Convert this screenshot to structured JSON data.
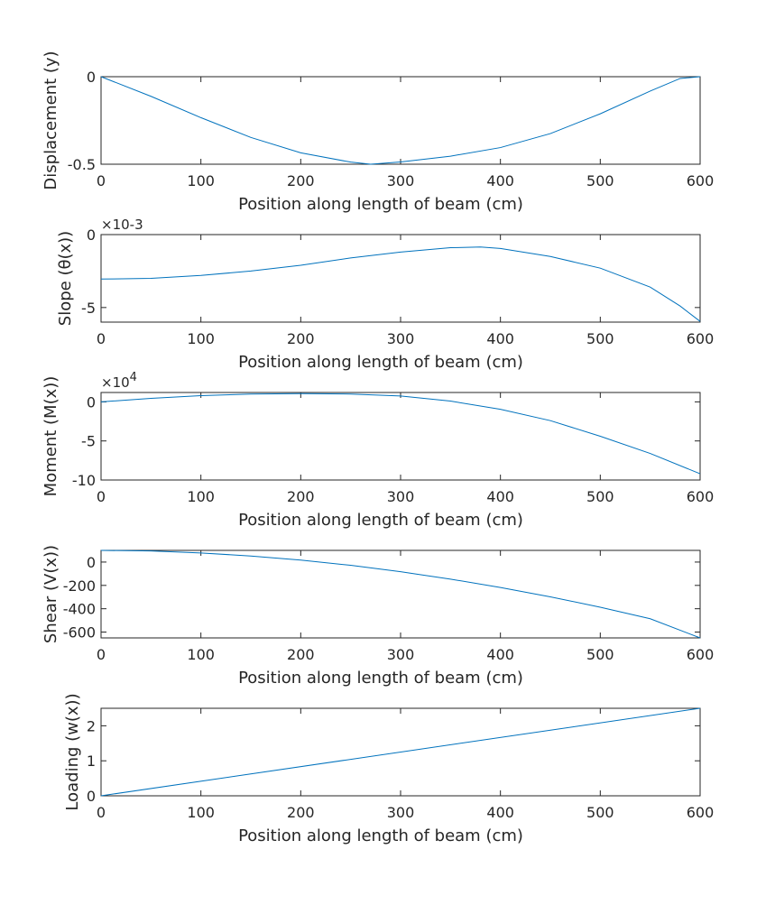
{
  "line_color": "#0072bd",
  "chart_data": [
    {
      "type": "line",
      "xlabel": "Position along length of beam (cm)",
      "ylabel": "Displacement (y)",
      "exponent_label": "",
      "xlim": [
        0,
        600
      ],
      "ylim": [
        -0.5,
        0
      ],
      "xticks": [
        0,
        100,
        200,
        300,
        400,
        500,
        600
      ],
      "xtick_labels": [
        "0",
        "100",
        "200",
        "300",
        "400",
        "500",
        "600"
      ],
      "yticks": [
        -0.5,
        0
      ],
      "ytick_labels": [
        "-0.5",
        "0"
      ],
      "x": [
        0,
        50,
        100,
        150,
        200,
        250,
        270,
        300,
        350,
        400,
        450,
        500,
        550,
        580,
        600
      ],
      "y": [
        0,
        -0.112,
        -0.234,
        -0.347,
        -0.435,
        -0.488,
        -0.5,
        -0.487,
        -0.454,
        -0.405,
        -0.325,
        -0.212,
        -0.082,
        -0.01,
        0
      ]
    },
    {
      "type": "line",
      "xlabel": "Position along length of beam (cm)",
      "ylabel": "Slope (θ(x))",
      "exponent_label": "×10-3",
      "xlim": [
        0,
        600
      ],
      "ylim": [
        -6,
        0
      ],
      "xticks": [
        0,
        100,
        200,
        300,
        400,
        500,
        600
      ],
      "xtick_labels": [
        "0",
        "100",
        "200",
        "300",
        "400",
        "500",
        "600"
      ],
      "yticks": [
        -5,
        0
      ],
      "ytick_labels": [
        "-5",
        "0"
      ],
      "x": [
        0,
        50,
        100,
        150,
        200,
        250,
        300,
        350,
        380,
        400,
        450,
        500,
        550,
        580,
        600
      ],
      "y": [
        -3.05,
        -3.0,
        -2.8,
        -2.5,
        -2.1,
        -1.6,
        -1.2,
        -0.9,
        -0.85,
        -0.95,
        -1.5,
        -2.3,
        -3.6,
        -4.9,
        -5.95
      ]
    },
    {
      "type": "line",
      "xlabel": "Position along length of beam (cm)",
      "ylabel": "Moment (M(x))",
      "exponent_label": "×10",
      "exponent_power": "4",
      "xlim": [
        0,
        600
      ],
      "ylim": [
        -10,
        1.2
      ],
      "xticks": [
        0,
        100,
        200,
        300,
        400,
        500,
        600
      ],
      "xtick_labels": [
        "0",
        "100",
        "200",
        "300",
        "400",
        "500",
        "600"
      ],
      "yticks": [
        -10,
        -5,
        0
      ],
      "ytick_labels": [
        "-10",
        "-5",
        "0"
      ],
      "x": [
        0,
        50,
        100,
        150,
        200,
        250,
        300,
        350,
        400,
        450,
        500,
        550,
        600
      ],
      "y": [
        0,
        0.45,
        0.8,
        1.0,
        1.05,
        1.0,
        0.75,
        0.1,
        -0.95,
        -2.4,
        -4.4,
        -6.6,
        -9.2
      ]
    },
    {
      "type": "line",
      "xlabel": "Position along length of beam (cm)",
      "ylabel": "Shear (V(x))",
      "exponent_label": "",
      "xlim": [
        0,
        600
      ],
      "ylim": [
        -650,
        100
      ],
      "xticks": [
        0,
        100,
        200,
        300,
        400,
        500,
        600
      ],
      "xtick_labels": [
        "0",
        "100",
        "200",
        "300",
        "400",
        "500",
        "600"
      ],
      "yticks": [
        -600,
        -400,
        -200,
        0
      ],
      "ytick_labels": [
        "-600",
        "-400",
        "-200",
        "0"
      ],
      "x": [
        0,
        50,
        100,
        150,
        200,
        250,
        300,
        350,
        400,
        450,
        500,
        550,
        600
      ],
      "y": [
        100,
        95,
        78,
        52,
        17,
        -28,
        -83,
        -146,
        -218,
        -298,
        -387,
        -486,
        -650
      ]
    },
    {
      "type": "line",
      "xlabel": "Position along length of beam (cm)",
      "ylabel": "Loading (w(x))",
      "exponent_label": "",
      "xlim": [
        0,
        600
      ],
      "ylim": [
        0,
        2.5
      ],
      "xticks": [
        0,
        100,
        200,
        300,
        400,
        500,
        600
      ],
      "xtick_labels": [
        "0",
        "100",
        "200",
        "300",
        "400",
        "500",
        "600"
      ],
      "yticks": [
        0,
        1,
        2
      ],
      "ytick_labels": [
        "0",
        "1",
        "2"
      ],
      "x": [
        0,
        600
      ],
      "y": [
        0,
        2.5
      ]
    }
  ]
}
